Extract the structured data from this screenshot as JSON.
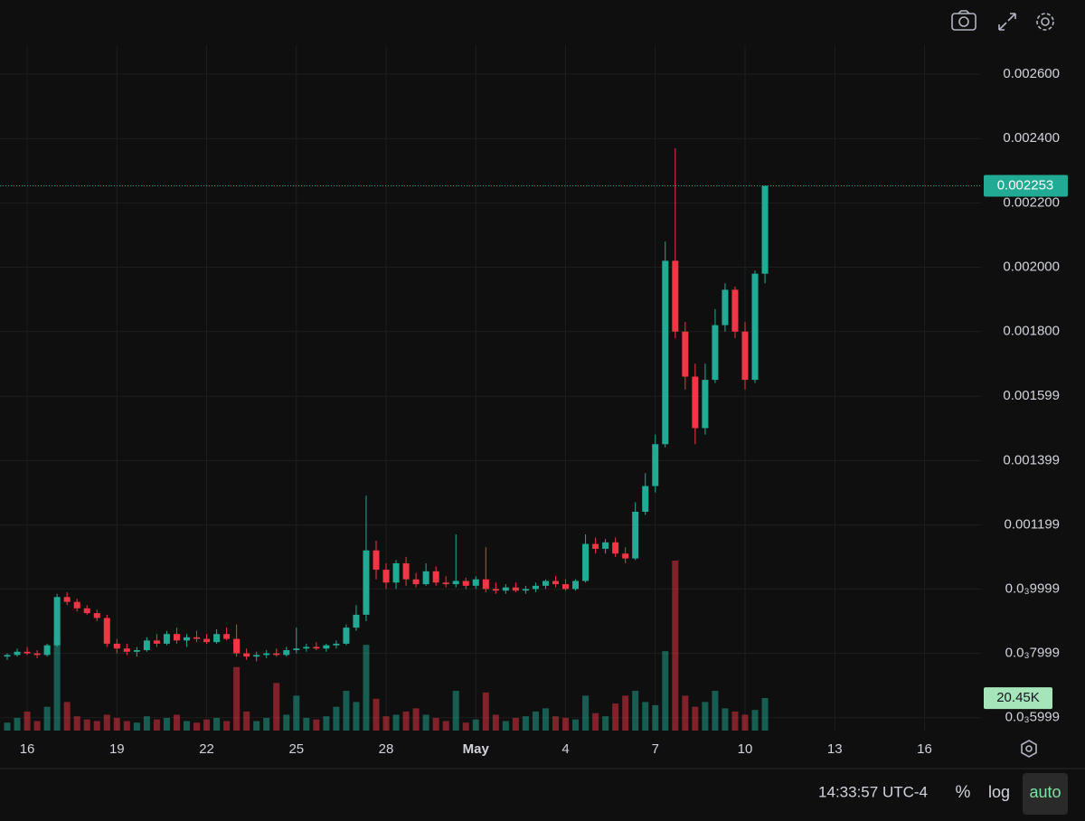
{
  "chart_data": {
    "type": "candlestick",
    "categories": [
      null,
      null,
      "16",
      null,
      null,
      null,
      null,
      null,
      null,
      null,
      null,
      "19",
      null,
      null,
      null,
      null,
      null,
      null,
      null,
      null,
      "22",
      null,
      null,
      null,
      null,
      null,
      null,
      null,
      null,
      "25",
      null,
      null,
      null,
      null,
      null,
      null,
      null,
      null,
      "28",
      null,
      null,
      null,
      null,
      null,
      null,
      null,
      null,
      "May",
      null,
      null,
      null,
      null,
      null,
      null,
      null,
      null,
      "4",
      null,
      null,
      null,
      null,
      null,
      null,
      null,
      null,
      "7",
      null,
      null,
      null,
      null,
      null,
      null,
      null,
      null,
      "10",
      null,
      null,
      null,
      null,
      null,
      null,
      null,
      null,
      "13",
      null,
      null,
      null,
      null,
      null,
      null,
      null,
      null,
      "16"
    ],
    "open": [
      0.00079,
      0.000795,
      0.000805,
      0.0008,
      0.000795,
      0.000825,
      0.000975,
      0.00096,
      0.00094,
      0.000925,
      0.00091,
      0.00083,
      0.000815,
      0.000805,
      0.00081,
      0.00084,
      0.00083,
      0.00086,
      0.00084,
      0.00085,
      0.000845,
      0.000835,
      0.00086,
      0.000845,
      0.0008,
      0.00079,
      0.000795,
      0.0008,
      0.000795,
      0.00081,
      0.000815,
      0.00082,
      0.000815,
      0.000825,
      0.00083,
      0.00088,
      0.00092,
      0.00112,
      0.00106,
      0.00102,
      0.00108,
      0.00103,
      0.001015,
      0.001055,
      0.00102,
      0.001015,
      0.001025,
      0.00101,
      0.00103,
      0.001,
      0.000995,
      0.001005,
      0.000995,
      0.001,
      0.00101,
      0.001025,
      0.001015,
      0.001,
      0.001025,
      0.00114,
      0.001125,
      0.001145,
      0.00111,
      0.001095,
      0.00124,
      0.00132,
      0.00145,
      0.00202,
      0.0018,
      0.00166,
      0.0015,
      0.00165,
      0.00182,
      0.00193,
      0.0018,
      0.00165,
      0.00198,
      null,
      null,
      null,
      null,
      null,
      null,
      null,
      null,
      null,
      null,
      null,
      null,
      null,
      null,
      null,
      null
    ],
    "high": [
      0.0008,
      0.000815,
      0.00082,
      0.00081,
      0.00083,
      0.000985,
      0.00099,
      0.00097,
      0.00095,
      0.000935,
      0.00092,
      0.000845,
      0.00083,
      0.00082,
      0.00085,
      0.00086,
      0.00087,
      0.00088,
      0.00086,
      0.00087,
      0.00086,
      0.000875,
      0.00088,
      0.00089,
      0.000815,
      0.000805,
      0.00081,
      0.000815,
      0.00082,
      0.00088,
      0.00083,
      0.000835,
      0.00083,
      0.00084,
      0.00089,
      0.00095,
      0.00129,
      0.00115,
      0.00108,
      0.00109,
      0.0011,
      0.00105,
      0.00108,
      0.00107,
      0.00104,
      0.00117,
      0.001035,
      0.00104,
      0.00113,
      0.00102,
      0.001015,
      0.00102,
      0.00101,
      0.00102,
      0.00103,
      0.00104,
      0.00103,
      0.00103,
      0.00117,
      0.00116,
      0.001155,
      0.00116,
      0.00113,
      0.00127,
      0.00136,
      0.00148,
      0.00208,
      0.00237,
      0.00183,
      0.0017,
      0.0017,
      0.00187,
      0.00195,
      0.00194,
      0.00183,
      0.00199,
      0.002253,
      null,
      null,
      null,
      null,
      null,
      null,
      null,
      null,
      null,
      null,
      null,
      null,
      null,
      null,
      null,
      null
    ],
    "low": [
      0.00078,
      0.00079,
      0.000795,
      0.000785,
      0.00079,
      0.00082,
      0.00095,
      0.00093,
      0.00092,
      0.0009,
      0.00082,
      0.0008,
      0.000795,
      0.00079,
      0.000805,
      0.00082,
      0.000825,
      0.00083,
      0.00082,
      0.000835,
      0.00083,
      0.00083,
      0.00084,
      0.00079,
      0.00078,
      0.000775,
      0.000785,
      0.00079,
      0.00079,
      0.0008,
      0.000805,
      0.00081,
      0.000805,
      0.000815,
      0.000825,
      0.00087,
      0.0009,
      0.00103,
      0.001,
      0.001,
      0.00101,
      0.001005,
      0.00101,
      0.00101,
      0.001005,
      0.001005,
      0.001,
      0.001,
      0.00099,
      0.000985,
      0.000985,
      0.00099,
      0.000985,
      0.00099,
      0.001,
      0.001005,
      0.000995,
      0.000995,
      0.00102,
      0.00111,
      0.00111,
      0.0011,
      0.00108,
      0.00109,
      0.00123,
      0.0013,
      0.00144,
      0.00178,
      0.00162,
      0.00145,
      0.00148,
      0.00164,
      0.0018,
      0.00178,
      0.00162,
      0.00164,
      0.00195,
      null,
      null,
      null,
      null,
      null,
      null,
      null,
      null,
      null,
      null,
      null,
      null,
      null,
      null,
      null,
      null
    ],
    "close": [
      0.000795,
      0.000805,
      0.0008,
      0.000795,
      0.000825,
      0.000975,
      0.00096,
      0.00094,
      0.000925,
      0.00091,
      0.00083,
      0.000815,
      0.000805,
      0.00081,
      0.00084,
      0.00083,
      0.00086,
      0.00084,
      0.00085,
      0.000845,
      0.000835,
      0.00086,
      0.000845,
      0.0008,
      0.00079,
      0.000795,
      0.0008,
      0.000795,
      0.00081,
      0.000815,
      0.00082,
      0.000815,
      0.000825,
      0.00083,
      0.00088,
      0.00092,
      0.00112,
      0.00106,
      0.00102,
      0.00108,
      0.00103,
      0.001015,
      0.001055,
      0.00102,
      0.001015,
      0.001025,
      0.00101,
      0.00103,
      0.001,
      0.000995,
      0.001005,
      0.000995,
      0.001,
      0.00101,
      0.001025,
      0.001015,
      0.001,
      0.001025,
      0.00114,
      0.001125,
      0.001145,
      0.00111,
      0.001095,
      0.00124,
      0.00132,
      0.00145,
      0.00202,
      0.0018,
      0.00166,
      0.0015,
      0.00165,
      0.00182,
      0.00193,
      0.0018,
      0.00165,
      0.00198,
      0.002253,
      null,
      null,
      null,
      null,
      null,
      null,
      null,
      null,
      null,
      null,
      null,
      null,
      null,
      null,
      null,
      null
    ],
    "volume": [
      5000,
      8000,
      12000,
      6000,
      15000,
      60000,
      18000,
      9000,
      7000,
      6000,
      10000,
      8000,
      6000,
      5000,
      9000,
      7000,
      8000,
      10000,
      6000,
      5000,
      7000,
      8000,
      6000,
      40000,
      12000,
      6000,
      8000,
      30000,
      10000,
      22000,
      8000,
      7000,
      9000,
      15000,
      25000,
      18000,
      54000,
      20000,
      9000,
      10000,
      12000,
      14000,
      10000,
      8000,
      6000,
      25000,
      5000,
      7000,
      24000,
      10000,
      6000,
      8000,
      9000,
      12000,
      14000,
      9000,
      8000,
      7000,
      22000,
      11000,
      9000,
      17000,
      22000,
      25000,
      18000,
      16000,
      50000,
      107000,
      22000,
      15000,
      18000,
      25000,
      14000,
      12000,
      10000,
      13000,
      20450,
      null,
      null,
      null,
      null,
      null,
      null,
      null,
      null,
      null,
      null,
      null,
      null,
      null,
      null,
      null,
      null
    ],
    "volume_last_label": "20.45K",
    "up_color": "#22ab94",
    "down_color": "#f23645",
    "ylim": [
      0.00056,
      0.00269
    ],
    "yticks": [
      {
        "value": 0.0006,
        "label": "0.0₃5999"
      },
      {
        "value": 0.0008,
        "label": "0.0₃7999"
      },
      {
        "value": 0.001,
        "label": "0.0₃9999"
      },
      0.001199,
      0.001399,
      0.001599,
      {
        "value": 0.0018,
        "label": "0.001800"
      },
      {
        "value": 0.002,
        "label": "0.002000"
      },
      {
        "value": 0.0022,
        "label": "0.002200"
      },
      {
        "value": 0.0024,
        "label": "0.002400"
      },
      {
        "value": 0.0026,
        "label": "0.002600"
      }
    ],
    "grid": true,
    "log_scale": false,
    "percent_scale": false,
    "auto_scale": true
  },
  "toolbar": {
    "time": "14:33:57 UTC-4",
    "percent": "%",
    "log": "log",
    "auto": "auto"
  }
}
